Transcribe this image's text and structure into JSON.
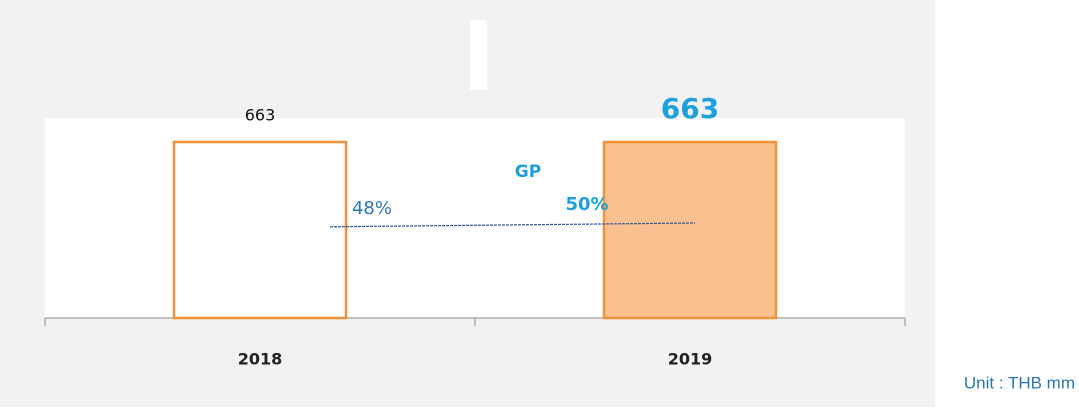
{
  "chart_data": {
    "type": "bar",
    "categories": [
      "2018",
      "2019"
    ],
    "values": [
      663,
      663
    ],
    "colors": [
      "#ffffff",
      "#f9c190"
    ],
    "edge_color": "#f39038",
    "line": {
      "name": "GP",
      "values": [
        48,
        50
      ],
      "value_labels": [
        "48%",
        "50%"
      ],
      "color": "#2f5597"
    },
    "unit": "Unit : THB mm"
  }
}
